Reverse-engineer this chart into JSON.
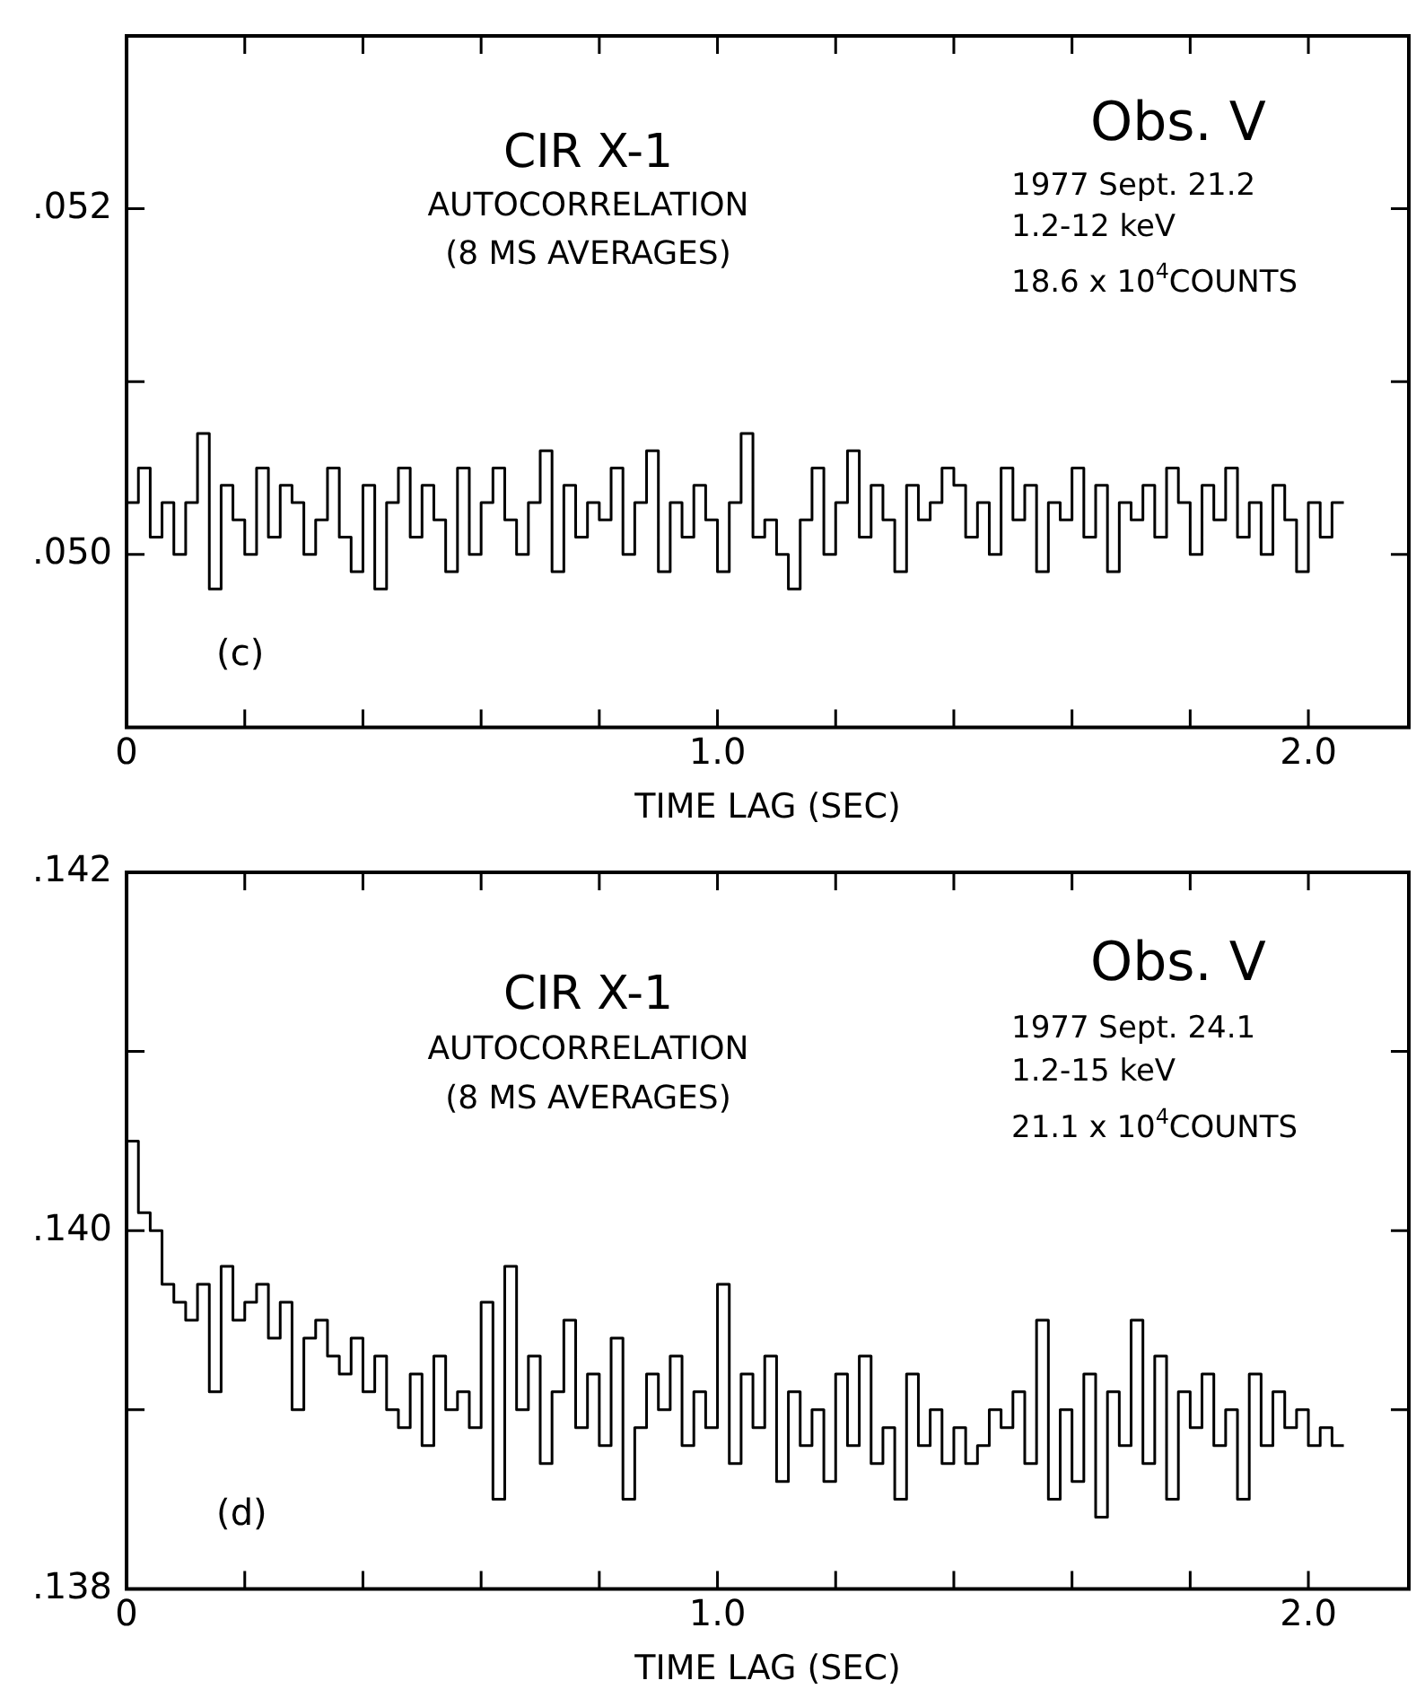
{
  "chart_data": [
    {
      "type": "step",
      "xlabel": "TIME LAG (SEC)",
      "color": "#000000",
      "grid": false,
      "annotations": [
        "CIR X-1",
        "AUTOCORRELATION",
        "(8 MS AVERAGES)",
        "Obs. V",
        "1977 Sept. 21.2",
        "1.2-12 keV",
        "18.6 x 10$^{4}$COUNTS",
        "(c)"
      ],
      "xlim": [
        0,
        2.17
      ],
      "xticks": [
        0,
        {
          "value": 0.2,
          "label": null
        },
        {
          "value": 0.4,
          "label": null
        },
        {
          "value": 0.6,
          "label": null
        },
        {
          "value": 0.8,
          "label": null
        },
        {
          "value": 1,
          "label": "1.0"
        },
        {
          "value": 1.2,
          "label": null
        },
        {
          "value": 1.4,
          "label": null
        },
        {
          "value": 1.6,
          "label": null
        },
        {
          "value": 1.8,
          "label": null
        },
        {
          "value": 2,
          "label": "2.0"
        }
      ],
      "ylim": [
        0.049,
        0.053
      ],
      "yticks": [
        {
          "value": 0.05,
          "label": ".050"
        },
        {
          "value": 0.051,
          "label": null
        },
        {
          "value": 0.052,
          "label": ".052"
        }
      ],
      "x": [
        0,
        0.02,
        0.04,
        0.06,
        0.08,
        0.1,
        0.12,
        0.14,
        0.16,
        0.18,
        0.2,
        0.22,
        0.24,
        0.26,
        0.28,
        0.3,
        0.32,
        0.34,
        0.36,
        0.38,
        0.4,
        0.42,
        0.44,
        0.46,
        0.48,
        0.5,
        0.52,
        0.54,
        0.56,
        0.58,
        0.6,
        0.62,
        0.64,
        0.66,
        0.68,
        0.7,
        0.72,
        0.74,
        0.76,
        0.78,
        0.8,
        0.82,
        0.84,
        0.86,
        0.88,
        0.9,
        0.92,
        0.94,
        0.96,
        0.98,
        1,
        1.02,
        1.04,
        1.06,
        1.08,
        1.1,
        1.12,
        1.14,
        1.16,
        1.18,
        1.2,
        1.22,
        1.24,
        1.26,
        1.28,
        1.3,
        1.32,
        1.34,
        1.36,
        1.38,
        1.4,
        1.42,
        1.44,
        1.46,
        1.48,
        1.5,
        1.52,
        1.54,
        1.56,
        1.58,
        1.6,
        1.62,
        1.64,
        1.66,
        1.68,
        1.7,
        1.72,
        1.74,
        1.76,
        1.78,
        1.8,
        1.82,
        1.84,
        1.86,
        1.88,
        1.9,
        1.92,
        1.94,
        1.96,
        1.98,
        2,
        2.02,
        2.04,
        2.06
      ],
      "values": [
        0.0506,
        0.0503,
        0.0505,
        0.0501,
        0.0503,
        0.05,
        0.0503,
        0.0507,
        0.0498,
        0.0504,
        0.0502,
        0.05,
        0.0505,
        0.0501,
        0.0504,
        0.0503,
        0.05,
        0.0502,
        0.0505,
        0.0501,
        0.0499,
        0.0504,
        0.0498,
        0.0503,
        0.0505,
        0.0501,
        0.0504,
        0.0502,
        0.0499,
        0.0505,
        0.05,
        0.0503,
        0.0505,
        0.0502,
        0.05,
        0.0503,
        0.0506,
        0.0499,
        0.0504,
        0.0501,
        0.0503,
        0.0502,
        0.0505,
        0.05,
        0.0503,
        0.0506,
        0.0499,
        0.0503,
        0.0501,
        0.0504,
        0.0502,
        0.0499,
        0.0503,
        0.0507,
        0.0501,
        0.0502,
        0.05,
        0.0498,
        0.0502,
        0.0505,
        0.05,
        0.0503,
        0.0506,
        0.0501,
        0.0504,
        0.0502,
        0.0499,
        0.0504,
        0.0502,
        0.0503,
        0.0505,
        0.0504,
        0.0501,
        0.0503,
        0.05,
        0.0505,
        0.0502,
        0.0504,
        0.0499,
        0.0503,
        0.0502,
        0.0505,
        0.0501,
        0.0504,
        0.0499,
        0.0503,
        0.0502,
        0.0504,
        0.0501,
        0.0505,
        0.0503,
        0.05,
        0.0504,
        0.0502,
        0.0505,
        0.0501,
        0.0503,
        0.05,
        0.0504,
        0.0502,
        0.0499,
        0.0503,
        0.0501,
        0.0503
      ]
    },
    {
      "type": "step",
      "xlabel": "TIME LAG (SEC)",
      "color": "#000000",
      "grid": false,
      "annotations": [
        "CIR X-1",
        "AUTOCORRELATION",
        "(8 MS AVERAGES)",
        "Obs. V",
        "1977 Sept. 24.1",
        "1.2-15 keV",
        "21.1 x 10$^{4}$COUNTS",
        "(d)"
      ],
      "xlim": [
        0,
        2.17
      ],
      "xticks": [
        0,
        {
          "value": 0.2,
          "label": null
        },
        {
          "value": 0.4,
          "label": null
        },
        {
          "value": 0.6,
          "label": null
        },
        {
          "value": 0.8,
          "label": null
        },
        {
          "value": 1,
          "label": "1.0"
        },
        {
          "value": 1.2,
          "label": null
        },
        {
          "value": 1.4,
          "label": null
        },
        {
          "value": 1.6,
          "label": null
        },
        {
          "value": 1.8,
          "label": null
        },
        {
          "value": 2,
          "label": "2.0"
        }
      ],
      "ylim": [
        0.138,
        0.142
      ],
      "yticks": [
        {
          "value": 0.138,
          "label": ".138"
        },
        {
          "value": 0.139,
          "label": null
        },
        {
          "value": 0.14,
          "label": ".140"
        },
        {
          "value": 0.141,
          "label": null
        },
        {
          "value": 0.142,
          "label": ".142"
        }
      ],
      "x": [
        0,
        0.02,
        0.04,
        0.06,
        0.08,
        0.1,
        0.12,
        0.14,
        0.16,
        0.18,
        0.2,
        0.22,
        0.24,
        0.26,
        0.28,
        0.3,
        0.32,
        0.34,
        0.36,
        0.38,
        0.4,
        0.42,
        0.44,
        0.46,
        0.48,
        0.5,
        0.52,
        0.54,
        0.56,
        0.58,
        0.6,
        0.62,
        0.64,
        0.66,
        0.68,
        0.7,
        0.72,
        0.74,
        0.76,
        0.78,
        0.8,
        0.82,
        0.84,
        0.86,
        0.88,
        0.9,
        0.92,
        0.94,
        0.96,
        0.98,
        1,
        1.02,
        1.04,
        1.06,
        1.08,
        1.1,
        1.12,
        1.14,
        1.16,
        1.18,
        1.2,
        1.22,
        1.24,
        1.26,
        1.28,
        1.3,
        1.32,
        1.34,
        1.36,
        1.38,
        1.4,
        1.42,
        1.44,
        1.46,
        1.48,
        1.5,
        1.52,
        1.54,
        1.56,
        1.58,
        1.6,
        1.62,
        1.64,
        1.66,
        1.68,
        1.7,
        1.72,
        1.74,
        1.76,
        1.78,
        1.8,
        1.82,
        1.84,
        1.86,
        1.88,
        1.9,
        1.92,
        1.94,
        1.96,
        1.98,
        2,
        2.02,
        2.04,
        2.06
      ],
      "values": [
        0.141,
        0.1405,
        0.1401,
        0.14,
        0.1397,
        0.1396,
        0.1395,
        0.1397,
        0.1391,
        0.1398,
        0.1395,
        0.1396,
        0.1397,
        0.1394,
        0.1396,
        0.139,
        0.1394,
        0.1395,
        0.1393,
        0.1392,
        0.1394,
        0.1391,
        0.1393,
        0.139,
        0.1389,
        0.1392,
        0.1388,
        0.1393,
        0.139,
        0.1391,
        0.1389,
        0.1396,
        0.1385,
        0.1398,
        0.139,
        0.1393,
        0.1387,
        0.1391,
        0.1395,
        0.1389,
        0.1392,
        0.1388,
        0.1394,
        0.1385,
        0.1389,
        0.1392,
        0.139,
        0.1393,
        0.1388,
        0.1391,
        0.1389,
        0.1397,
        0.1387,
        0.1392,
        0.1389,
        0.1393,
        0.1386,
        0.1391,
        0.1388,
        0.139,
        0.1386,
        0.1392,
        0.1388,
        0.1393,
        0.1387,
        0.1389,
        0.1385,
        0.1392,
        0.1388,
        0.139,
        0.1387,
        0.1389,
        0.1387,
        0.1388,
        0.139,
        0.1389,
        0.1391,
        0.1387,
        0.1395,
        0.1385,
        0.139,
        0.1386,
        0.1392,
        0.1384,
        0.1391,
        0.1388,
        0.1395,
        0.1387,
        0.1393,
        0.1385,
        0.1391,
        0.1389,
        0.1392,
        0.1388,
        0.139,
        0.1385,
        0.1392,
        0.1388,
        0.1391,
        0.1389,
        0.139,
        0.1388,
        0.1389,
        0.1388
      ]
    }
  ]
}
